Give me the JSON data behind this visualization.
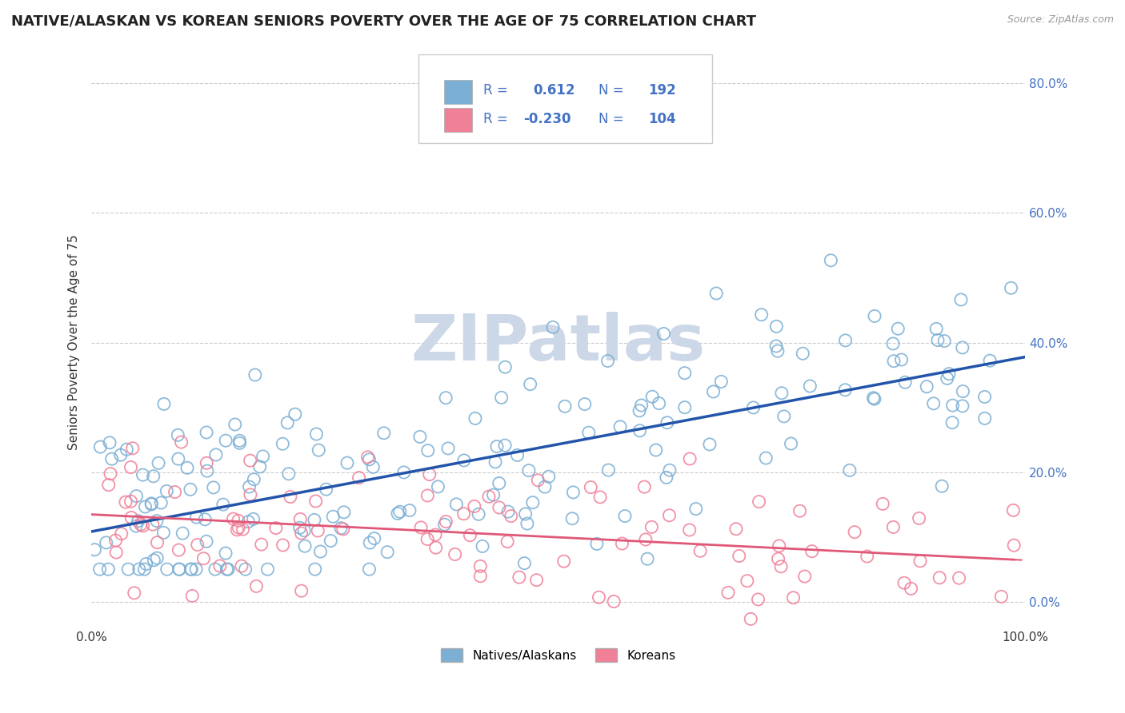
{
  "title": "NATIVE/ALASKAN VS KOREAN SENIORS POVERTY OVER THE AGE OF 75 CORRELATION CHART",
  "source": "Source: ZipAtlas.com",
  "ylabel": "Seniors Poverty Over the Age of 75",
  "xlim": [
    0.0,
    1.0
  ],
  "ylim": [
    -0.04,
    0.84
  ],
  "xticks": [
    0.0,
    0.2,
    0.4,
    0.6,
    0.8,
    1.0
  ],
  "xticklabels": [
    "0.0%",
    "",
    "",
    "",
    "",
    "100.0%"
  ],
  "yticks": [
    0.0,
    0.2,
    0.4,
    0.6,
    0.8
  ],
  "yticklabels": [
    "0.0%",
    "20.0%",
    "40.0%",
    "60.0%",
    "80.0%"
  ],
  "R_native": 0.612,
  "N_native": 192,
  "R_korean": -0.23,
  "N_korean": 104,
  "native_color": "#7bafd4",
  "korean_color": "#f08098",
  "native_line_color": "#2255aa",
  "korean_line_color": "#e05878",
  "watermark_color": "#ccd8e8",
  "background_color": "#ffffff",
  "grid_color": "#cccccc",
  "title_fontsize": 13,
  "axis_fontsize": 11,
  "tick_fontsize": 11,
  "ytick_color": "#4472c4",
  "legend_label_native": "Natives/Alaskans",
  "legend_label_korean": "Koreans"
}
